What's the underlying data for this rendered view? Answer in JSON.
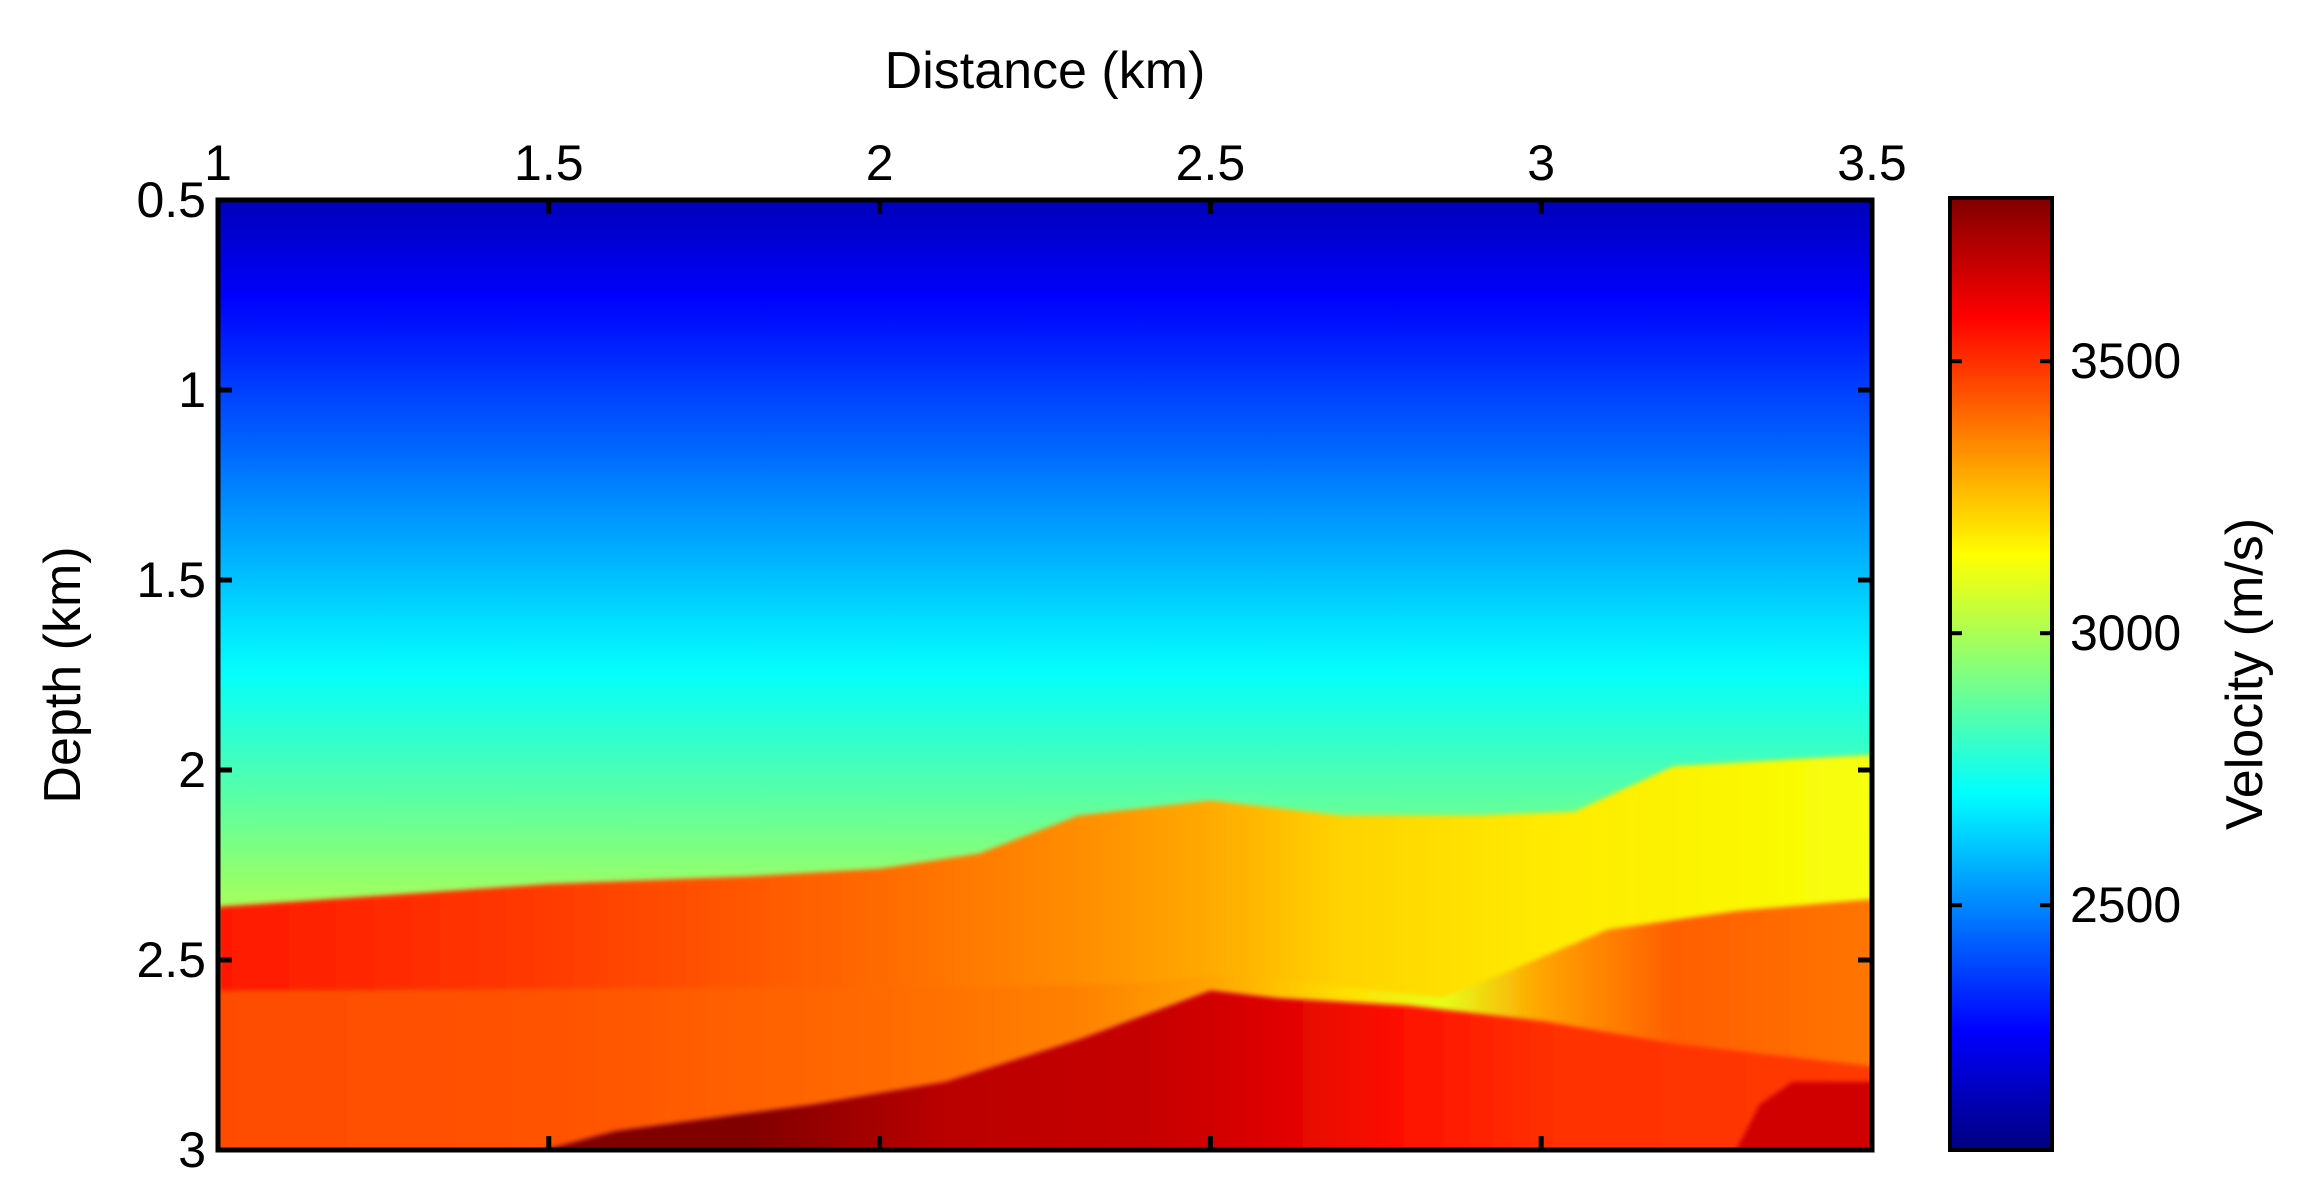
{
  "chart_data": {
    "type": "heatmap",
    "title": "",
    "xlabel": "Distance (km)",
    "ylabel": "Depth (km)",
    "colorbar_label": "Velocity (m/s)",
    "xlim": [
      1,
      3.5
    ],
    "ylim": [
      0.5,
      3
    ],
    "y_reversed": true,
    "x_axis_position": "top",
    "x_ticks": [
      1,
      1.5,
      2,
      2.5,
      3,
      3.5
    ],
    "x_tick_labels": [
      "1",
      "1.5",
      "2",
      "2.5",
      "3",
      "3.5"
    ],
    "y_ticks": [
      0.5,
      1,
      1.5,
      2,
      2.5,
      3
    ],
    "y_tick_labels": [
      "0.5",
      "1",
      "1.5",
      "2",
      "2.5",
      "3"
    ],
    "colorbar_range": [
      2050,
      3800
    ],
    "colorbar_ticks": [
      2500,
      3000,
      3500
    ],
    "colorbar_tick_labels": [
      "2500",
      "3000",
      "3500"
    ],
    "colormap": "jet",
    "gradient_top_velocity": 2150,
    "gradient_bottom_velocity": 3280,
    "layers": [
      {
        "name": "layer-2",
        "top_boundary": [
          [
            1.0,
            2.36
          ],
          [
            1.5,
            2.3
          ],
          [
            1.8,
            2.28
          ],
          [
            2.0,
            2.26
          ],
          [
            2.15,
            2.22
          ],
          [
            2.3,
            2.12
          ],
          [
            2.5,
            2.08
          ],
          [
            2.7,
            2.12
          ],
          [
            2.9,
            2.12
          ],
          [
            3.05,
            2.11
          ],
          [
            3.2,
            1.99
          ],
          [
            3.5,
            1.96
          ]
        ],
        "left_velocity": 3540,
        "right_velocity": 3130,
        "velocity_profile": [
          [
            1.0,
            3540
          ],
          [
            1.5,
            3480
          ],
          [
            2.0,
            3400
          ],
          [
            2.3,
            3340
          ],
          [
            2.5,
            3290
          ],
          [
            2.7,
            3220
          ],
          [
            3.0,
            3180
          ],
          [
            3.5,
            3130
          ]
        ]
      },
      {
        "name": "layer-3",
        "top_boundary": [
          [
            1.0,
            2.58
          ],
          [
            2.2,
            2.57
          ],
          [
            2.4,
            2.56
          ],
          [
            2.5,
            2.54
          ],
          [
            2.6,
            2.55
          ],
          [
            2.85,
            2.6
          ],
          [
            2.95,
            2.53
          ],
          [
            3.1,
            2.42
          ],
          [
            3.3,
            2.37
          ],
          [
            3.5,
            2.34
          ]
        ],
        "velocity_profile": [
          [
            1.0,
            3450
          ],
          [
            1.5,
            3440
          ],
          [
            2.0,
            3400
          ],
          [
            2.3,
            3360
          ],
          [
            2.5,
            3300
          ],
          [
            2.7,
            3200
          ],
          [
            2.85,
            3100
          ],
          [
            3.0,
            3300
          ],
          [
            3.2,
            3420
          ],
          [
            3.5,
            3380
          ]
        ]
      },
      {
        "name": "layer-4",
        "top_boundary": [
          [
            1.0,
            3.05
          ],
          [
            1.45,
            3.02
          ],
          [
            1.6,
            2.95
          ],
          [
            1.9,
            2.88
          ],
          [
            2.1,
            2.82
          ],
          [
            2.3,
            2.71
          ],
          [
            2.5,
            2.58
          ],
          [
            2.6,
            2.6
          ],
          [
            2.8,
            2.62
          ],
          [
            3.0,
            2.66
          ],
          [
            3.2,
            2.72
          ],
          [
            3.5,
            2.78
          ]
        ],
        "velocity_profile": [
          [
            1.0,
            3500
          ],
          [
            1.5,
            3800
          ],
          [
            1.8,
            3800
          ],
          [
            2.1,
            3700
          ],
          [
            2.4,
            3680
          ],
          [
            2.55,
            3650
          ],
          [
            2.8,
            3550
          ],
          [
            3.0,
            3500
          ],
          [
            3.5,
            3480
          ]
        ]
      },
      {
        "name": "corner-body",
        "top_boundary": [
          [
            3.28,
            3.05
          ],
          [
            3.33,
            2.88
          ],
          [
            3.38,
            2.82
          ],
          [
            3.5,
            2.82
          ]
        ],
        "velocity_profile": [
          [
            3.3,
            3660
          ],
          [
            3.5,
            3660
          ]
        ]
      }
    ]
  }
}
